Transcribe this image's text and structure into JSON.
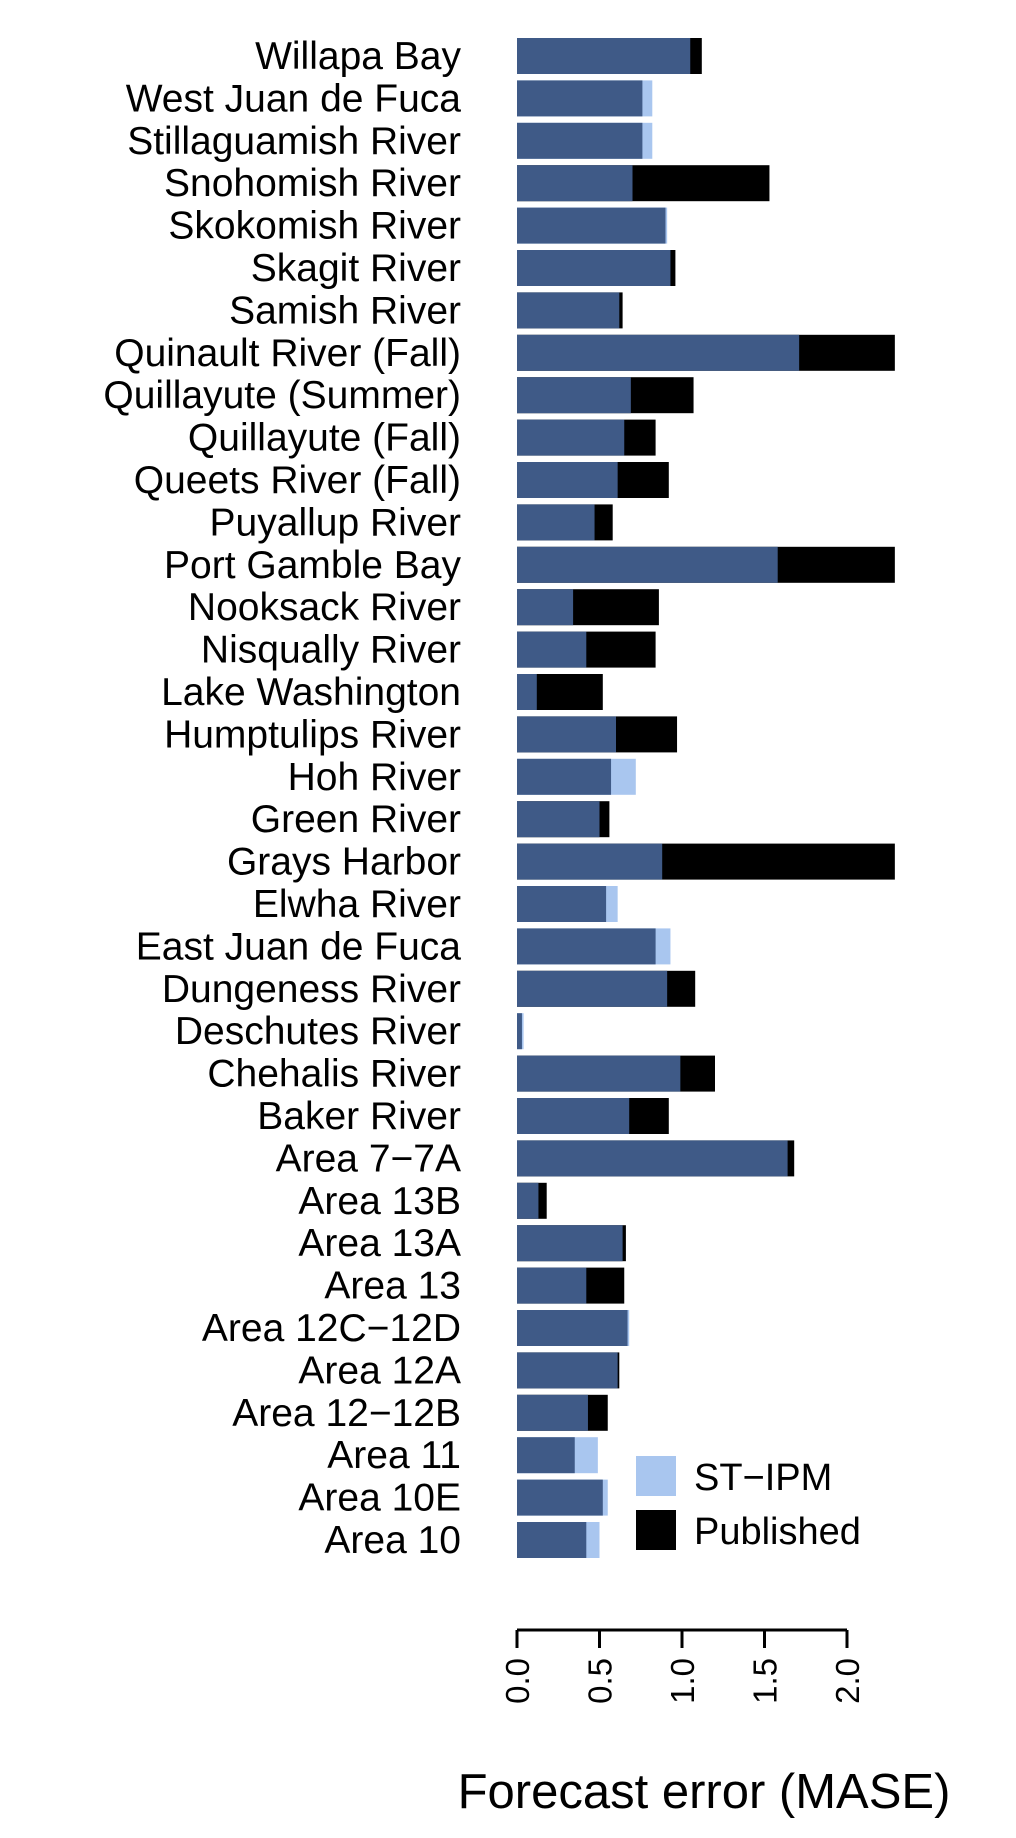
{
  "chart_data": {
    "type": "bar",
    "orientation": "horizontal",
    "xlabel": "Forecast error (MASE)",
    "xlim": [
      0,
      2.3
    ],
    "xticks": [
      "0.0",
      "0.5",
      "1.0",
      "1.5",
      "2.0"
    ],
    "tick_label_rotation": "vertical",
    "overlap_color": "#3f5a87",
    "legend_position": "bottom-right",
    "series": [
      {
        "name": "ST−IPM",
        "color": "#a9c6ef",
        "values": [
          1.05,
          0.82,
          0.82,
          0.7,
          0.91,
          0.93,
          0.62,
          1.71,
          0.69,
          0.65,
          0.61,
          0.47,
          1.58,
          0.34,
          0.42,
          0.12,
          0.6,
          0.72,
          0.5,
          0.88,
          0.61,
          0.93,
          0.91,
          0.04,
          0.99,
          0.68,
          1.64,
          0.13,
          0.64,
          0.42,
          0.68,
          0.61,
          0.43,
          0.49,
          0.55,
          0.5
        ]
      },
      {
        "name": "Published",
        "color": "#000000",
        "values": [
          1.12,
          0.76,
          0.76,
          1.53,
          0.9,
          0.96,
          0.64,
          2.29,
          1.07,
          0.84,
          0.92,
          0.58,
          2.29,
          0.86,
          0.84,
          0.52,
          0.97,
          0.57,
          0.56,
          2.29,
          0.54,
          0.84,
          1.08,
          0.03,
          1.2,
          0.92,
          1.68,
          0.18,
          0.66,
          0.65,
          0.67,
          0.62,
          0.55,
          0.35,
          0.52,
          0.42
        ]
      }
    ],
    "categories": [
      "Willapa Bay",
      "West Juan de Fuca",
      "Stillaguamish River",
      "Snohomish River",
      "Skokomish River",
      "Skagit River",
      "Samish River",
      "Quinault River (Fall)",
      "Quillayute  (Summer)",
      "Quillayute  (Fall)",
      "Queets River (Fall)",
      "Puyallup River",
      "Port Gamble Bay",
      "Nooksack River",
      "Nisqually River",
      "Lake Washington",
      "Humptulips River",
      "Hoh River",
      "Green River",
      "Grays Harbor",
      "Elwha River",
      "East Juan de Fuca",
      "Dungeness River",
      "Deschutes River",
      "Chehalis River",
      "Baker River",
      "Area 7−7A",
      "Area 13B",
      "Area 13A",
      "Area 13",
      "Area 12C−12D",
      "Area 12A",
      "Area 12−12B",
      "Area 11",
      "Area 10E",
      "Area 10"
    ]
  }
}
